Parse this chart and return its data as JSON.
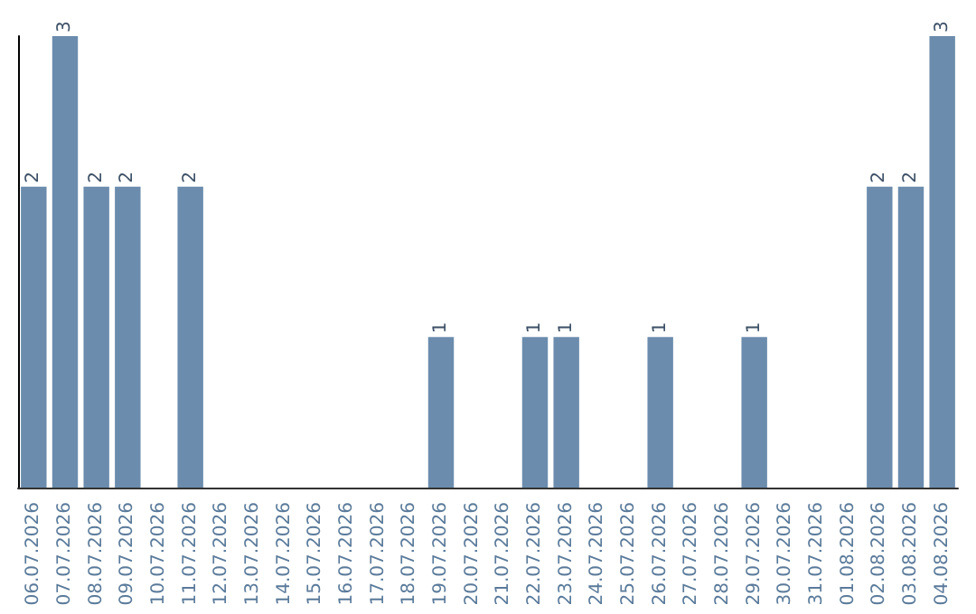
{
  "chart_data": {
    "type": "bar",
    "categories": [
      "06.07.2026",
      "07.07.2026",
      "08.07.2026",
      "09.07.2026",
      "10.07.2026",
      "11.07.2026",
      "12.07.2026",
      "13.07.2026",
      "14.07.2026",
      "15.07.2026",
      "16.07.2026",
      "17.07.2026",
      "18.07.2026",
      "19.07.2026",
      "20.07.2026",
      "21.07.2026",
      "22.07.2026",
      "23.07.2026",
      "24.07.2026",
      "25.07.2026",
      "26.07.2026",
      "27.07.2026",
      "28.07.2026",
      "29.07.2026",
      "30.07.2026",
      "31.07.2026",
      "01.08.2026",
      "02.08.2026",
      "03.08.2026",
      "04.08.2026"
    ],
    "values": [
      2,
      3,
      2,
      2,
      0,
      2,
      0,
      0,
      0,
      0,
      0,
      0,
      0,
      1,
      0,
      0,
      1,
      1,
      0,
      0,
      1,
      0,
      0,
      1,
      0,
      0,
      0,
      2,
      2,
      3
    ],
    "value_labels": [
      "2",
      "3",
      "2",
      "2",
      null,
      "2",
      null,
      null,
      null,
      null,
      null,
      null,
      null,
      "1",
      null,
      null,
      "1",
      "1",
      null,
      null,
      "1",
      null,
      null,
      "1",
      null,
      null,
      null,
      "2",
      "2",
      "3"
    ],
    "color": "#6b8cad",
    "tick_labels": "x"
  }
}
